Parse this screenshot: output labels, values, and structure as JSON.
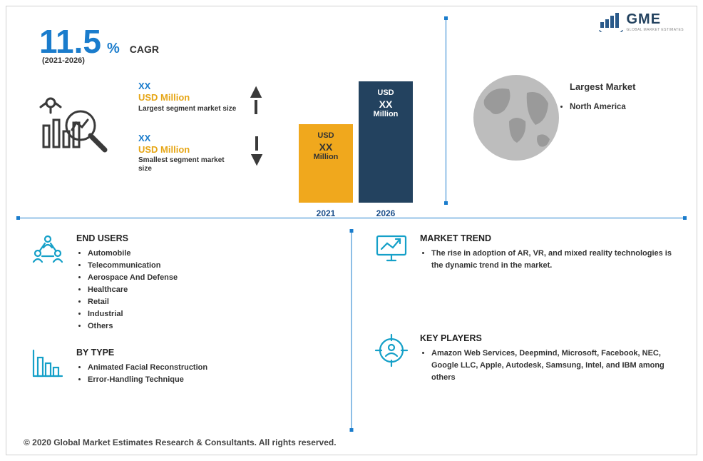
{
  "logo": {
    "text": "GME",
    "sub": "GLOBAL MARKET ESTIMATES",
    "stroke": "#2a5a8a"
  },
  "cagr": {
    "value": "11.5",
    "pct": "%",
    "label": "CAGR",
    "period": "(2021-2026)"
  },
  "metrics": {
    "hi": {
      "val": "XX",
      "unit": "USD Million",
      "caption": "Largest segment market size"
    },
    "lo": {
      "val": "XX",
      "unit": "USD Million",
      "caption": "Smallest segment market size"
    }
  },
  "chart": {
    "type": "bar",
    "bars": [
      {
        "year": "2021",
        "h": 110,
        "bg": "#f0a81d",
        "fg": "#333",
        "l1": "USD",
        "l2": "XX",
        "l3": "Million"
      },
      {
        "year": "2026",
        "h": 170,
        "bg": "#23425f",
        "fg": "#ffffff",
        "l1": "USD",
        "l2": "XX",
        "l3": "Million"
      }
    ],
    "year_color": "#1a4e8a"
  },
  "globe": {
    "title": "Largest Market",
    "items": [
      "North America"
    ],
    "fill": "#b9b9b9"
  },
  "colors": {
    "accent": "#1a7ccc",
    "icon": "#15a0c8",
    "dark": "#23425f",
    "amber": "#e6a617"
  },
  "blocks": {
    "endusers": {
      "title": "END USERS",
      "items": [
        "Automobile",
        "Telecommunication",
        "Aerospace And Defense",
        "Healthcare",
        "Retail",
        "Industrial",
        "Others"
      ]
    },
    "trend": {
      "title": "MARKET TREND",
      "items": [
        "The rise in adoption of AR, VR, and mixed reality technologies is the dynamic trend in the market."
      ]
    },
    "type": {
      "title": "BY TYPE",
      "items": [
        "Animated Facial Reconstruction",
        "Error-Handling Technique"
      ]
    },
    "players": {
      "title": "KEY PLAYERS",
      "items": [
        "Amazon Web Services, Deepmind, Microsoft, Facebook, NEC, Google LLC, Apple, Autodesk, Samsung, Intel, and IBM among others"
      ]
    }
  },
  "footer": "© 2020 Global Market Estimates Research & Consultants. All rights reserved."
}
